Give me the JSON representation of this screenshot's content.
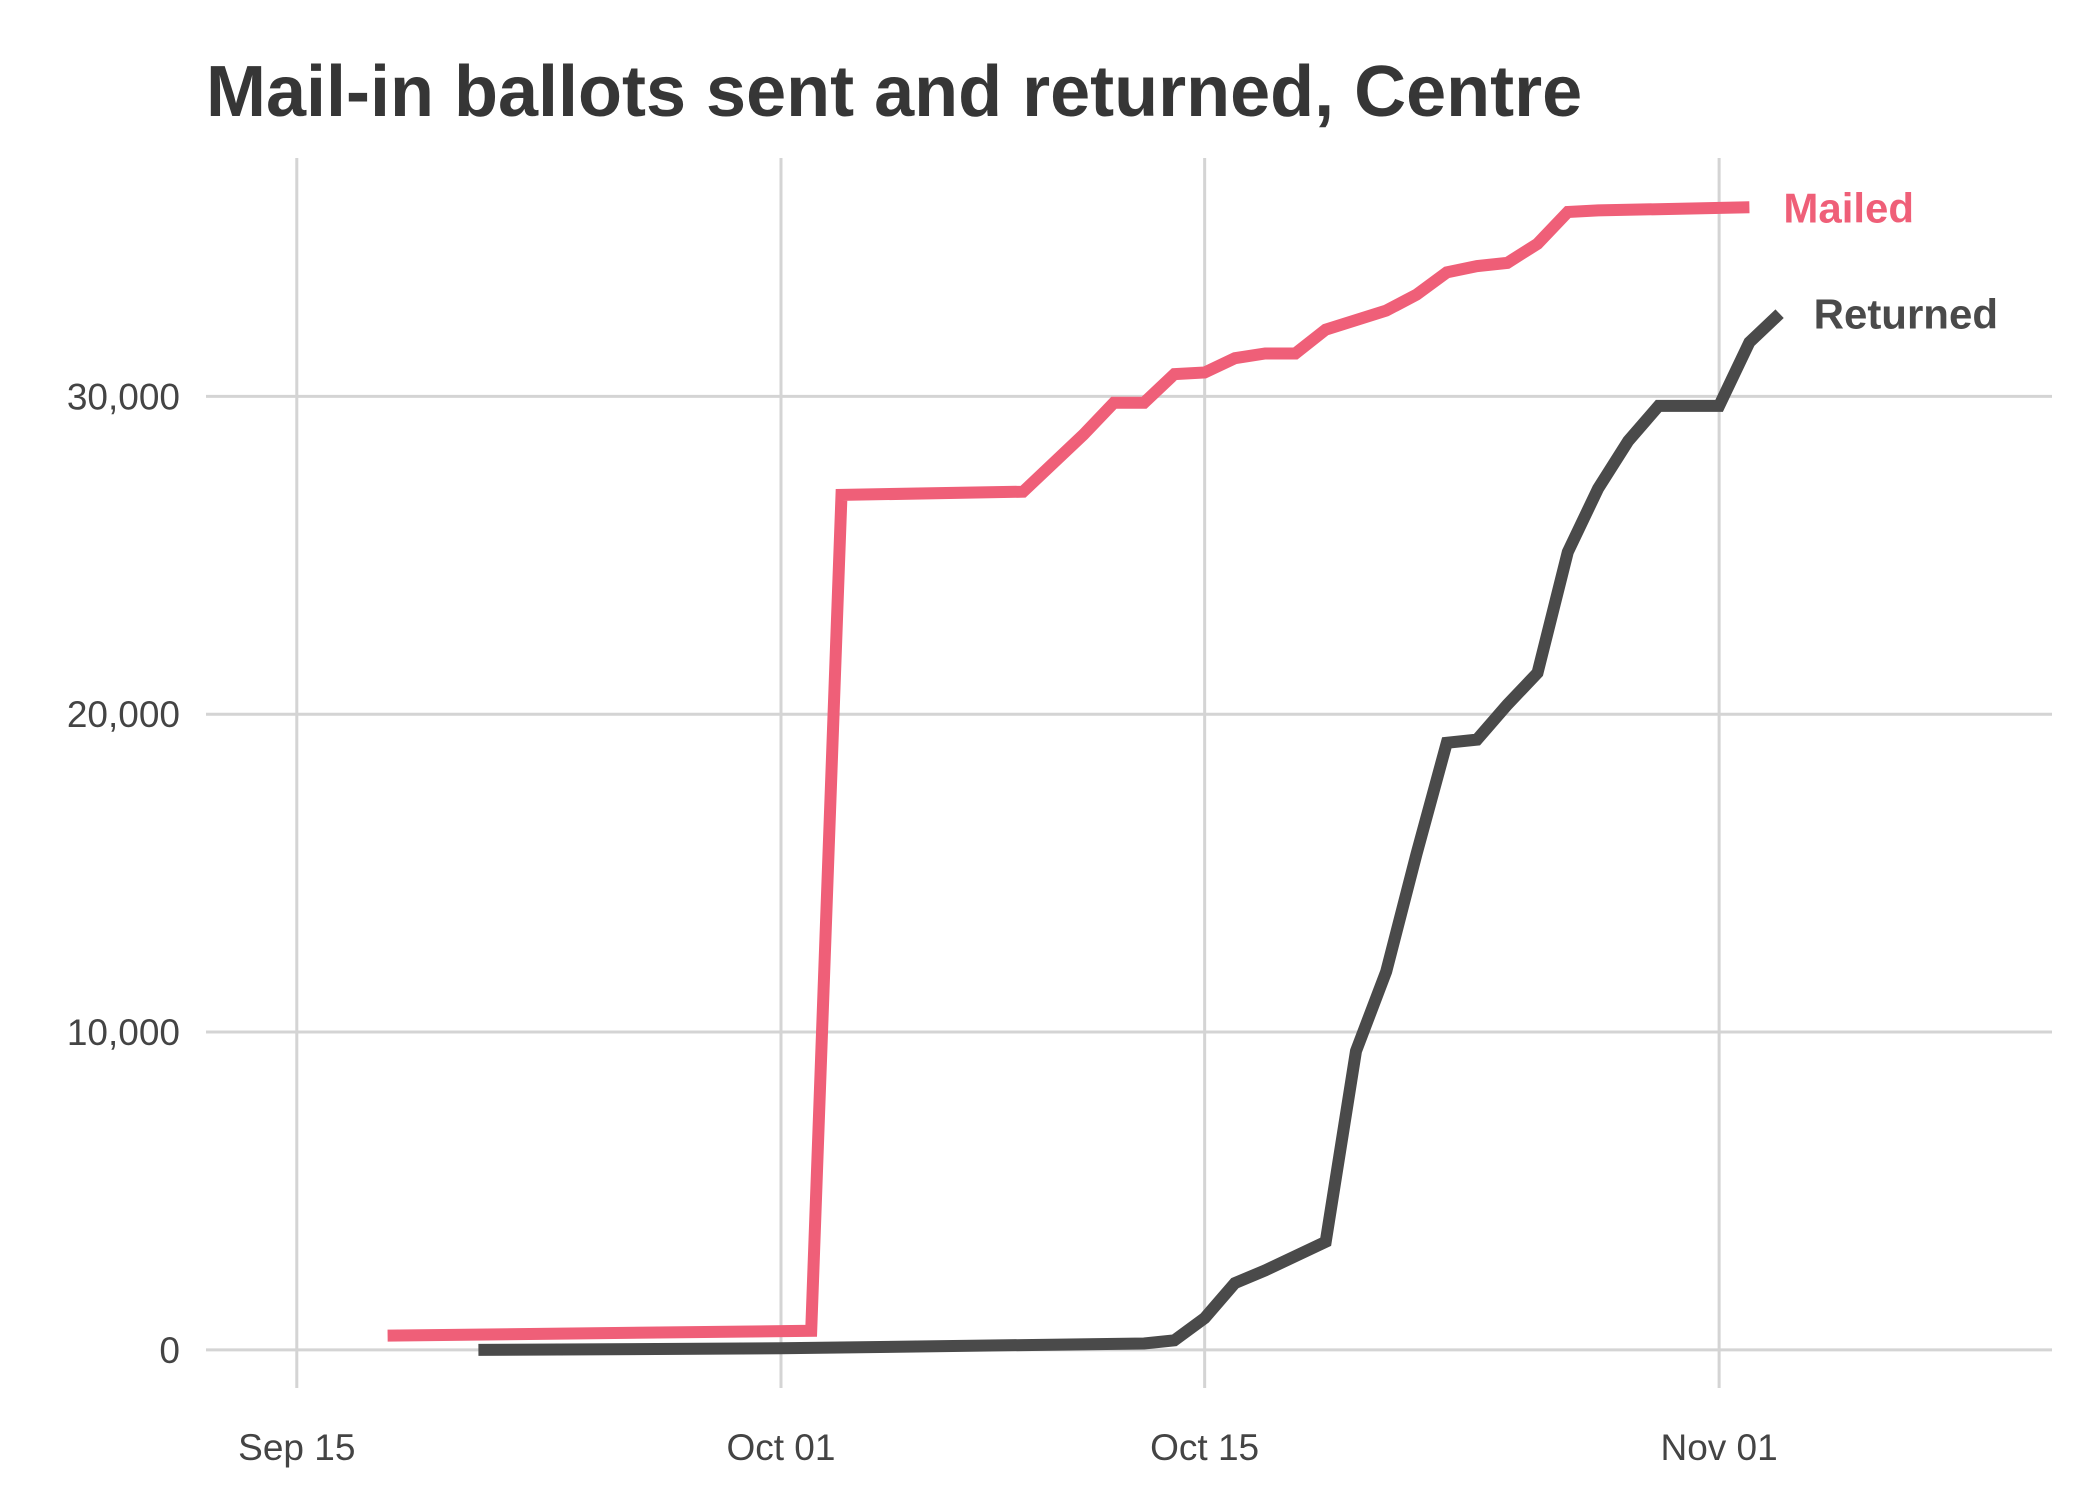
{
  "chart_data": {
    "type": "line",
    "title": "Mail-in ballots sent and returned, Centre",
    "xlabel": "",
    "ylabel": "",
    "x_axis": {
      "type": "date",
      "range": [
        "2020-09-12",
        "2020-11-12"
      ],
      "ticks": [
        {
          "date": "2020-09-15",
          "label": "Sep 15"
        },
        {
          "date": "2020-10-01",
          "label": "Oct 01"
        },
        {
          "date": "2020-10-15",
          "label": "Oct 15"
        },
        {
          "date": "2020-11-01",
          "label": "Nov 01"
        }
      ]
    },
    "y_axis": {
      "range": [
        -1200,
        37500
      ],
      "ticks": [
        {
          "value": 0,
          "label": "0"
        },
        {
          "value": 10000,
          "label": "10,000"
        },
        {
          "value": 20000,
          "label": "20,000"
        },
        {
          "value": 30000,
          "label": "30,000"
        }
      ]
    },
    "grid": true,
    "legend": "direct labels at line ends (right)",
    "series": [
      {
        "name": "Mailed",
        "color": "#ef5f78",
        "points": [
          [
            "2020-09-18",
            450
          ],
          [
            "2020-10-02",
            600
          ],
          [
            "2020-10-03",
            26900
          ],
          [
            "2020-10-09",
            27000
          ],
          [
            "2020-10-11",
            28800
          ],
          [
            "2020-10-12",
            29800
          ],
          [
            "2020-10-13",
            29800
          ],
          [
            "2020-10-14",
            30700
          ],
          [
            "2020-10-15",
            30750
          ],
          [
            "2020-10-16",
            31200
          ],
          [
            "2020-10-17",
            31350
          ],
          [
            "2020-10-18",
            31350
          ],
          [
            "2020-10-19",
            32100
          ],
          [
            "2020-10-21",
            32700
          ],
          [
            "2020-10-22",
            33200
          ],
          [
            "2020-10-23",
            33900
          ],
          [
            "2020-10-24",
            34100
          ],
          [
            "2020-10-25",
            34200
          ],
          [
            "2020-10-26",
            34800
          ],
          [
            "2020-10-27",
            35800
          ],
          [
            "2020-10-28",
            35850
          ],
          [
            "2020-11-02",
            35950
          ]
        ]
      },
      {
        "name": "Returned",
        "color": "#4a4a4a",
        "points": [
          [
            "2020-09-21",
            0
          ],
          [
            "2020-10-01",
            50
          ],
          [
            "2020-10-09",
            150
          ],
          [
            "2020-10-13",
            200
          ],
          [
            "2020-10-14",
            300
          ],
          [
            "2020-10-15",
            1000
          ],
          [
            "2020-10-16",
            2100
          ],
          [
            "2020-10-17",
            2500
          ],
          [
            "2020-10-19",
            3400
          ],
          [
            "2020-10-20",
            9400
          ],
          [
            "2020-10-21",
            11900
          ],
          [
            "2020-10-22",
            15600
          ],
          [
            "2020-10-23",
            19100
          ],
          [
            "2020-10-24",
            19200
          ],
          [
            "2020-10-25",
            20300
          ],
          [
            "2020-10-26",
            21300
          ],
          [
            "2020-10-27",
            25100
          ],
          [
            "2020-10-28",
            27100
          ],
          [
            "2020-10-29",
            28600
          ],
          [
            "2020-10-30",
            29700
          ],
          [
            "2020-11-01",
            29700
          ],
          [
            "2020-11-02",
            31700
          ],
          [
            "2020-11-03",
            32600
          ]
        ]
      }
    ]
  }
}
